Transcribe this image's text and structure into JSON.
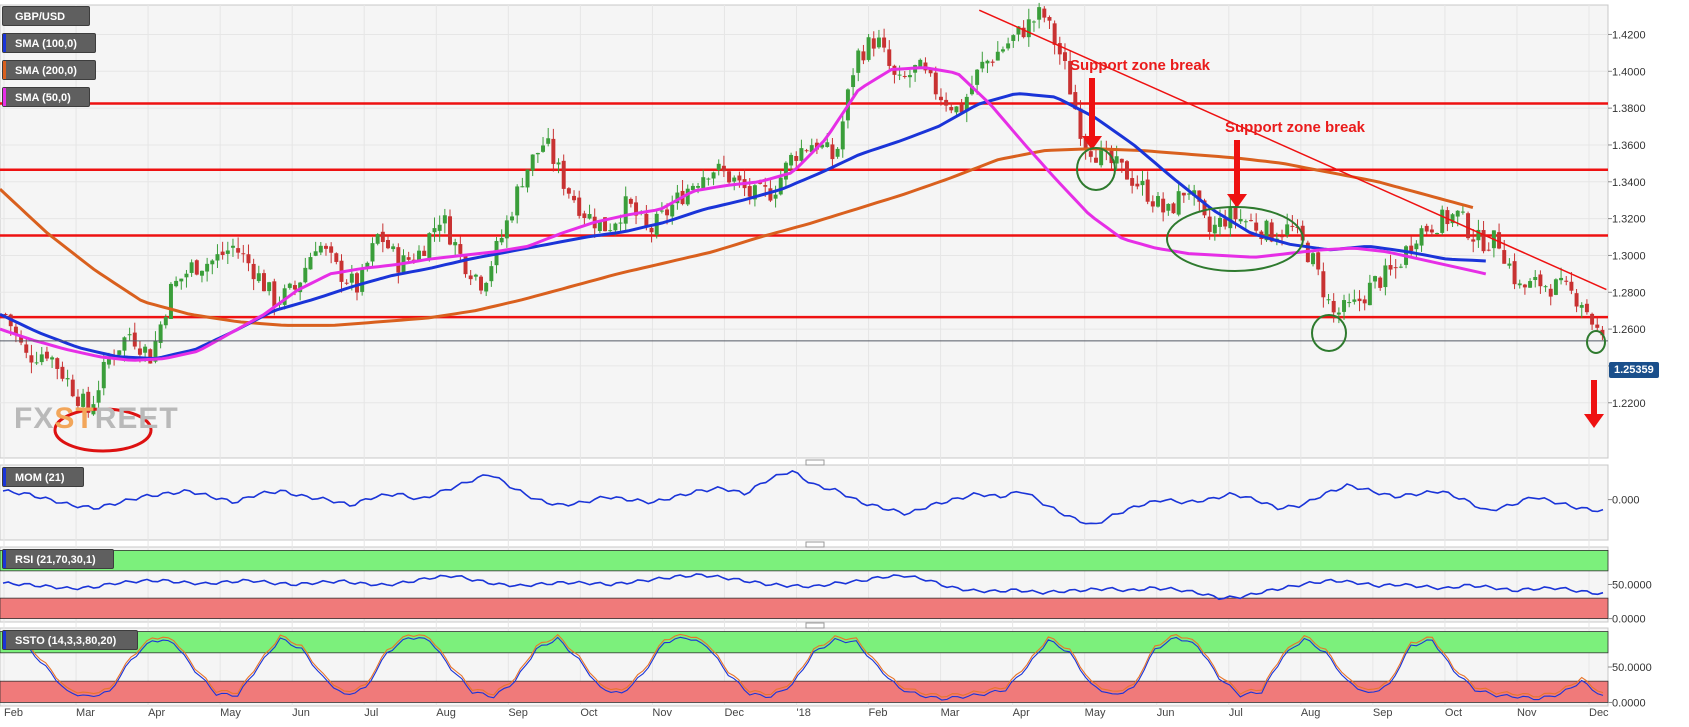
{
  "chart_data": {
    "type": "candlestick",
    "symbol": "GBP/USD",
    "current_price": "1.25359",
    "x_ticks": [
      "Feb",
      "Mar",
      "Apr",
      "May",
      "Jun",
      "Jul",
      "Aug",
      "Sep",
      "Oct",
      "Nov",
      "Dec",
      "'18",
      "Feb",
      "Mar",
      "Apr",
      "May",
      "Jun",
      "Jul",
      "Aug",
      "Sep",
      "Oct",
      "Nov",
      "Dec"
    ],
    "price_axis": {
      "ylim": [
        1.19,
        1.436
      ],
      "ticks": [
        "1.4200",
        "1.4000",
        "1.3800",
        "1.3600",
        "1.3400",
        "1.3200",
        "1.3000",
        "1.2800",
        "1.2600",
        "1.2400",
        "1.2200"
      ]
    },
    "price_waypoints": [
      1.268,
      1.245,
      1.248,
      1.232,
      1.215,
      1.245,
      1.258,
      1.245,
      1.282,
      1.294,
      1.297,
      1.305,
      1.292,
      1.275,
      1.282,
      1.308,
      1.292,
      1.282,
      1.312,
      1.295,
      1.302,
      1.322,
      1.298,
      1.285,
      1.312,
      1.345,
      1.362,
      1.338,
      1.322,
      1.315,
      1.328,
      1.312,
      1.325,
      1.338,
      1.348,
      1.342,
      1.332,
      1.335,
      1.355,
      1.362,
      1.352,
      1.408,
      1.418,
      1.392,
      1.402,
      1.388,
      1.378,
      1.402,
      1.412,
      1.422,
      1.432,
      1.405,
      1.362,
      1.352,
      1.345,
      1.335,
      1.322,
      1.338,
      1.312,
      1.322,
      1.318,
      1.312,
      1.315,
      1.298,
      1.268,
      1.272,
      1.285,
      1.292,
      1.312,
      1.318,
      1.322,
      1.308,
      1.308,
      1.282,
      1.285,
      1.282,
      1.276,
      1.253
    ],
    "sma_50": {
      "label": "SMA (50,0)",
      "color": "#e62ee6",
      "values": [
        1.26,
        1.254,
        1.249,
        1.245,
        1.243,
        1.244,
        1.248,
        1.258,
        1.268,
        1.281,
        1.29,
        1.293,
        1.295,
        1.298,
        1.3,
        1.302,
        1.305,
        1.312,
        1.318,
        1.322,
        1.325,
        1.335,
        1.338,
        1.34,
        1.345,
        1.363,
        1.39,
        1.401,
        1.402,
        1.399,
        1.382,
        1.361,
        1.341,
        1.322,
        1.309,
        1.304,
        1.301,
        1.3,
        1.299,
        1.301,
        1.303,
        1.304,
        1.302,
        1.298,
        1.294,
        1.29
      ]
    },
    "sma_100": {
      "label": "SMA (100,0)",
      "color": "#1a34d8",
      "values": [
        1.268,
        1.258,
        1.25,
        1.245,
        1.244,
        1.249,
        1.259,
        1.27,
        1.276,
        1.283,
        1.289,
        1.293,
        1.298,
        1.302,
        1.306,
        1.31,
        1.313,
        1.318,
        1.325,
        1.33,
        1.336,
        1.345,
        1.355,
        1.362,
        1.37,
        1.382,
        1.388,
        1.386,
        1.375,
        1.36,
        1.342,
        1.325,
        1.312,
        1.306,
        1.303,
        1.305,
        1.302,
        1.298,
        1.297
      ]
    },
    "sma_200": {
      "label": "SMA (200,0)",
      "color": "#d9601e",
      "values": [
        1.336,
        1.312,
        1.292,
        1.275,
        1.268,
        1.264,
        1.262,
        1.262,
        1.264,
        1.266,
        1.27,
        1.276,
        1.283,
        1.29,
        1.296,
        1.302,
        1.31,
        1.317,
        1.325,
        1.333,
        1.342,
        1.352,
        1.357,
        1.358,
        1.357,
        1.355,
        1.353,
        1.35,
        1.345,
        1.34,
        1.333,
        1.326
      ]
    },
    "horizontal_levels": [
      1.3825,
      1.3465,
      1.3108,
      1.2665
    ],
    "trendline": {
      "from": 1.4332,
      "to": 1.2815
    },
    "annotations": [
      "Support zone break",
      "Support zone break"
    ],
    "indicators": [
      {
        "label": "MOM (21)",
        "color": "#1a34d8",
        "ticks": [
          "0.000"
        ],
        "values": [
          0.03,
          0.02,
          0.0,
          -0.02,
          -0.03,
          -0.01,
          0.01,
          0.02,
          0.03,
          0.01,
          -0.01,
          0.02,
          0.03,
          0.01,
          0.0,
          -0.02,
          0.01,
          0.02,
          0.0,
          0.03,
          0.06,
          0.09,
          0.04,
          0.0,
          -0.02,
          -0.01,
          0.01,
          0.0,
          -0.01,
          0.01,
          0.03,
          0.04,
          0.02,
          0.07,
          0.1,
          0.05,
          0.03,
          -0.01,
          -0.03,
          -0.05,
          -0.02,
          0.0,
          0.02,
          0.01,
          0.03,
          -0.02,
          -0.06,
          -0.09,
          -0.05,
          -0.02,
          0.0,
          -0.01,
          0.0,
          0.02,
          0.0,
          -0.03,
          -0.02,
          0.02,
          0.05,
          0.03,
          0.01,
          0.02,
          0.03,
          0.0,
          -0.04,
          -0.02,
          0.01,
          -0.01,
          -0.03,
          -0.04
        ]
      },
      {
        "label": "RSI (21,70,30,1)",
        "color": "#1a34d8",
        "ticks": [
          "50.0000",
          "0.0000"
        ],
        "values": [
          52,
          50,
          47,
          44,
          46,
          52,
          55,
          56,
          53,
          51,
          54,
          56,
          52,
          50,
          53,
          55,
          51,
          49,
          54,
          60,
          63,
          56,
          50,
          48,
          51,
          53,
          52,
          50,
          54,
          58,
          62,
          64,
          60,
          55,
          50,
          48,
          47,
          52,
          55,
          61,
          63,
          57,
          46,
          41,
          40,
          42,
          38,
          40,
          42,
          44,
          41,
          45,
          43,
          38,
          30,
          32,
          40,
          46,
          52,
          56,
          53,
          48,
          50,
          47,
          44,
          49,
          46,
          41,
          44,
          45,
          40,
          36
        ]
      },
      {
        "label": "SSTO (14,3,3,80,20)",
        "color": "#1a34d8",
        "color2": "#e8742a",
        "ticks": [
          "50.0000",
          "0.0000"
        ],
        "values": [
          78,
          82,
          50,
          15,
          8,
          15,
          60,
          88,
          85,
          45,
          12,
          10,
          52,
          90,
          75,
          35,
          10,
          20,
          70,
          92,
          88,
          48,
          15,
          8,
          30,
          75,
          90,
          60,
          20,
          12,
          40,
          85,
          92,
          80,
          40,
          12,
          8,
          25,
          70,
          88,
          85,
          50,
          20,
          10,
          5,
          8,
          12,
          18,
          50,
          88,
          70,
          25,
          10,
          20,
          75,
          92,
          80,
          35,
          10,
          15,
          65,
          90,
          70,
          30,
          12,
          25,
          80,
          88,
          45,
          18,
          10,
          8,
          5,
          12,
          30,
          8
        ]
      }
    ]
  }
}
